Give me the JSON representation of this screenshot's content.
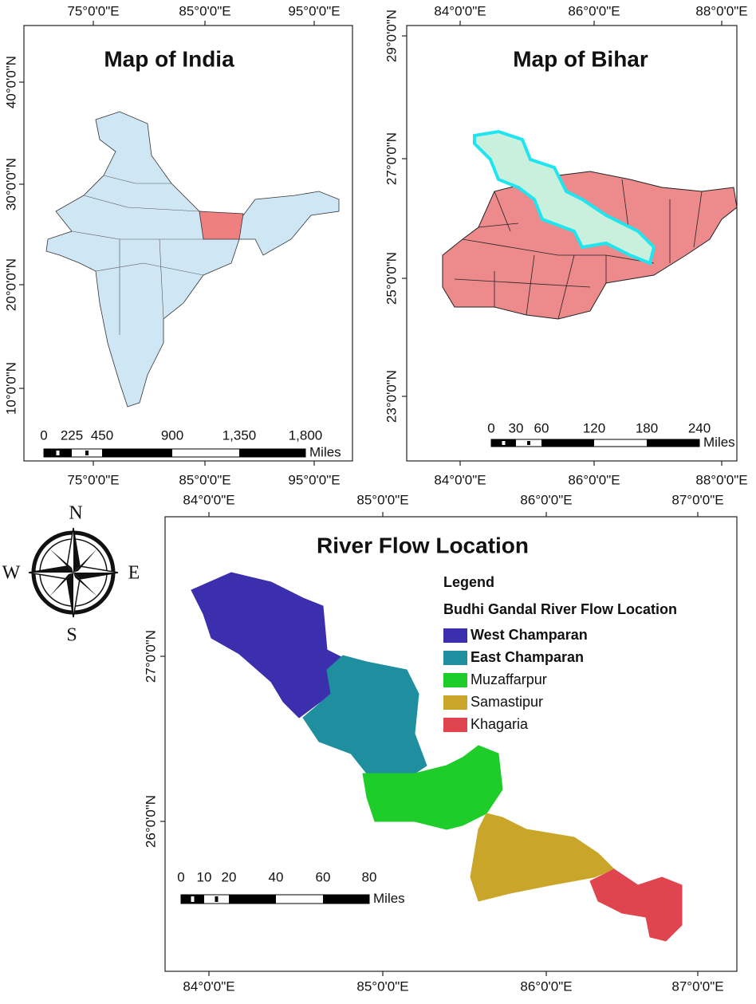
{
  "india_map": {
    "title": "Map of India",
    "lon_ticks": [
      "75°0'0\"E",
      "85°0'0\"E",
      "95°0'0\"E"
    ],
    "lat_ticks": [
      "40°0'0\"N",
      "30°0'0\"N",
      "20°0'0\"N",
      "10°0'0\"N"
    ],
    "scale_labels": [
      "0",
      "225",
      "450",
      "900",
      "1,350",
      "1,800"
    ],
    "scale_unit": "Miles"
  },
  "bihar_map": {
    "title": "Map of Bihar",
    "lon_ticks": [
      "84°0'0\"E",
      "86°0'0\"E",
      "88°0'0\"E"
    ],
    "lat_ticks": [
      "29°0'0\"N",
      "27°0'0\"N",
      "25°0'0\"N",
      "23°0'0\"N"
    ],
    "scale_labels": [
      "0",
      "30",
      "60",
      "120",
      "180",
      "240"
    ],
    "scale_unit": "Miles"
  },
  "river_map": {
    "title": "River Flow Location",
    "lon_ticks": [
      "84°0'0\"E",
      "85°0'0\"E",
      "86°0'0\"E",
      "87°0'0\"E"
    ],
    "lat_ticks": [
      "27°0'0\"N",
      "26°0'0\"N"
    ],
    "legend_title": "Legend",
    "legend_subtitle": "Budhi Gandal River Flow Location",
    "legend_items": [
      {
        "label": "West Champaran",
        "color": "#3b2fae"
      },
      {
        "label": "East Champaran",
        "color": "#1f8fa0"
      },
      {
        "label": "Muzaffarpur",
        "color": "#1ecc2a"
      },
      {
        "label": "Samastipur",
        "color": "#c9a62a"
      },
      {
        "label": "Khagaria",
        "color": "#e0444e"
      }
    ],
    "scale_labels": [
      "0",
      "10",
      "20",
      "40",
      "60",
      "80"
    ],
    "scale_unit": "Miles"
  },
  "compass": {
    "north": "N",
    "south": "S",
    "east": "E",
    "west": "W"
  }
}
